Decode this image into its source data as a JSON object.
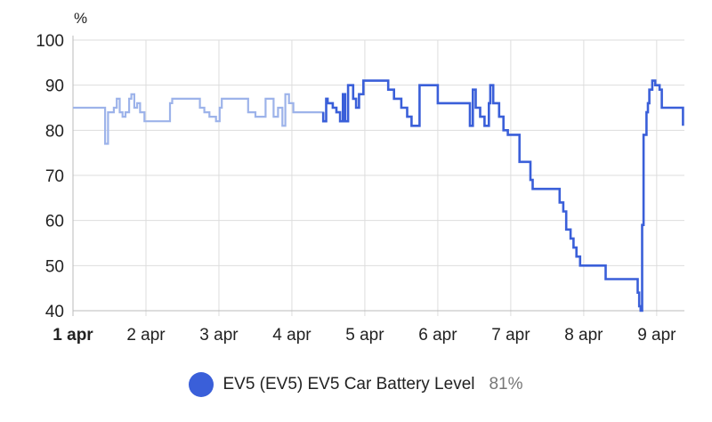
{
  "chart_data": {
    "type": "line",
    "y_unit": "%",
    "ylim": [
      40,
      100
    ],
    "y_ticks": [
      40,
      50,
      60,
      70,
      80,
      90,
      100
    ],
    "xlim": [
      0,
      8.38
    ],
    "x_ticks": [
      {
        "value": 0,
        "label": "1 apr",
        "bold": true
      },
      {
        "value": 1,
        "label": "2 apr",
        "bold": false
      },
      {
        "value": 2,
        "label": "3 apr",
        "bold": false
      },
      {
        "value": 3,
        "label": "4 apr",
        "bold": false
      },
      {
        "value": 4,
        "label": "5 apr",
        "bold": false
      },
      {
        "value": 5,
        "label": "6 apr",
        "bold": false
      },
      {
        "value": 6,
        "label": "7 apr",
        "bold": false
      },
      {
        "value": 7,
        "label": "8 apr",
        "bold": false
      },
      {
        "value": 8,
        "label": "9 apr",
        "bold": false
      }
    ],
    "grid": true,
    "history_end_day": 3.43,
    "series": [
      {
        "name": "EV5 (EV5) EV5 Car Battery Level",
        "current_value": "81%",
        "color": "#3a5fd9",
        "history_color": "#9db3ea",
        "points": [
          [
            0,
            85
          ],
          [
            0.44,
            85
          ],
          [
            0.44,
            77
          ],
          [
            0.48,
            77
          ],
          [
            0.48,
            84
          ],
          [
            0.56,
            84
          ],
          [
            0.56,
            85
          ],
          [
            0.6,
            85
          ],
          [
            0.6,
            87
          ],
          [
            0.64,
            87
          ],
          [
            0.64,
            84
          ],
          [
            0.68,
            84
          ],
          [
            0.68,
            83
          ],
          [
            0.72,
            83
          ],
          [
            0.72,
            84
          ],
          [
            0.77,
            84
          ],
          [
            0.77,
            87
          ],
          [
            0.8,
            87
          ],
          [
            0.8,
            88
          ],
          [
            0.84,
            88
          ],
          [
            0.84,
            85
          ],
          [
            0.88,
            85
          ],
          [
            0.88,
            86
          ],
          [
            0.92,
            86
          ],
          [
            0.92,
            84
          ],
          [
            0.98,
            84
          ],
          [
            0.98,
            82
          ],
          [
            1.33,
            82
          ],
          [
            1.33,
            86
          ],
          [
            1.36,
            86
          ],
          [
            1.36,
            87
          ],
          [
            1.74,
            87
          ],
          [
            1.74,
            85
          ],
          [
            1.8,
            85
          ],
          [
            1.8,
            84
          ],
          [
            1.87,
            84
          ],
          [
            1.87,
            83
          ],
          [
            1.96,
            83
          ],
          [
            1.96,
            82
          ],
          [
            2.01,
            82
          ],
          [
            2.01,
            85
          ],
          [
            2.04,
            85
          ],
          [
            2.04,
            87
          ],
          [
            2.4,
            87
          ],
          [
            2.4,
            84
          ],
          [
            2.5,
            84
          ],
          [
            2.5,
            83
          ],
          [
            2.64,
            83
          ],
          [
            2.64,
            87
          ],
          [
            2.75,
            87
          ],
          [
            2.75,
            83
          ],
          [
            2.81,
            83
          ],
          [
            2.81,
            85
          ],
          [
            2.87,
            85
          ],
          [
            2.87,
            81
          ],
          [
            2.91,
            81
          ],
          [
            2.91,
            88
          ],
          [
            2.96,
            88
          ],
          [
            2.96,
            86
          ],
          [
            3.02,
            86
          ],
          [
            3.02,
            84
          ],
          [
            3.43,
            84
          ],
          [
            3.43,
            82
          ],
          [
            3.47,
            82
          ],
          [
            3.47,
            87
          ],
          [
            3.49,
            87
          ],
          [
            3.49,
            86
          ],
          [
            3.56,
            86
          ],
          [
            3.56,
            85
          ],
          [
            3.61,
            85
          ],
          [
            3.61,
            84
          ],
          [
            3.66,
            84
          ],
          [
            3.66,
            82
          ],
          [
            3.7,
            82
          ],
          [
            3.7,
            88
          ],
          [
            3.73,
            88
          ],
          [
            3.73,
            82
          ],
          [
            3.77,
            82
          ],
          [
            3.77,
            90
          ],
          [
            3.84,
            90
          ],
          [
            3.84,
            87
          ],
          [
            3.88,
            87
          ],
          [
            3.88,
            85
          ],
          [
            3.92,
            85
          ],
          [
            3.92,
            88
          ],
          [
            3.98,
            88
          ],
          [
            3.98,
            91
          ],
          [
            4.32,
            91
          ],
          [
            4.32,
            89
          ],
          [
            4.4,
            89
          ],
          [
            4.4,
            87
          ],
          [
            4.5,
            87
          ],
          [
            4.5,
            85
          ],
          [
            4.58,
            85
          ],
          [
            4.58,
            83
          ],
          [
            4.64,
            83
          ],
          [
            4.64,
            81
          ],
          [
            4.75,
            81
          ],
          [
            4.75,
            90
          ],
          [
            5.0,
            90
          ],
          [
            5.0,
            86
          ],
          [
            5.44,
            86
          ],
          [
            5.44,
            81
          ],
          [
            5.48,
            81
          ],
          [
            5.48,
            89
          ],
          [
            5.52,
            89
          ],
          [
            5.52,
            85
          ],
          [
            5.58,
            85
          ],
          [
            5.58,
            83
          ],
          [
            5.64,
            83
          ],
          [
            5.64,
            81
          ],
          [
            5.7,
            81
          ],
          [
            5.7,
            86
          ],
          [
            5.72,
            86
          ],
          [
            5.72,
            90
          ],
          [
            5.76,
            90
          ],
          [
            5.76,
            86
          ],
          [
            5.84,
            86
          ],
          [
            5.84,
            83
          ],
          [
            5.9,
            83
          ],
          [
            5.9,
            80
          ],
          [
            5.96,
            80
          ],
          [
            5.96,
            79
          ],
          [
            6.12,
            79
          ],
          [
            6.12,
            73
          ],
          [
            6.27,
            73
          ],
          [
            6.27,
            69
          ],
          [
            6.3,
            69
          ],
          [
            6.3,
            67
          ],
          [
            6.67,
            67
          ],
          [
            6.67,
            64
          ],
          [
            6.72,
            64
          ],
          [
            6.72,
            62
          ],
          [
            6.76,
            62
          ],
          [
            6.76,
            58
          ],
          [
            6.82,
            58
          ],
          [
            6.82,
            56
          ],
          [
            6.86,
            56
          ],
          [
            6.86,
            54
          ],
          [
            6.9,
            54
          ],
          [
            6.9,
            52
          ],
          [
            6.95,
            52
          ],
          [
            6.95,
            50
          ],
          [
            7.3,
            50
          ],
          [
            7.3,
            47
          ],
          [
            7.74,
            47
          ],
          [
            7.74,
            44
          ],
          [
            7.76,
            44
          ],
          [
            7.76,
            41
          ],
          [
            7.78,
            41
          ],
          [
            7.78,
            40
          ],
          [
            7.8,
            40
          ],
          [
            7.8,
            59
          ],
          [
            7.82,
            59
          ],
          [
            7.82,
            79
          ],
          [
            7.86,
            79
          ],
          [
            7.86,
            84
          ],
          [
            7.88,
            84
          ],
          [
            7.88,
            86
          ],
          [
            7.9,
            86
          ],
          [
            7.9,
            89
          ],
          [
            7.94,
            89
          ],
          [
            7.94,
            91
          ],
          [
            7.98,
            91
          ],
          [
            7.98,
            90
          ],
          [
            8.04,
            90
          ],
          [
            8.04,
            89
          ],
          [
            8.07,
            89
          ],
          [
            8.07,
            85
          ],
          [
            8.36,
            85
          ],
          [
            8.36,
            81
          ]
        ]
      }
    ]
  }
}
